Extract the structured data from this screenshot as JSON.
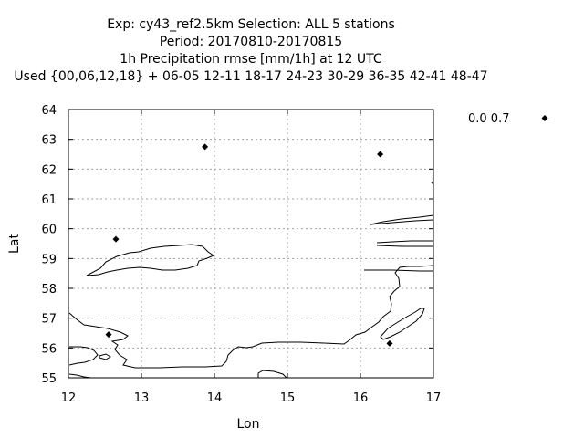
{
  "header": {
    "line1": "Exp: cy43_ref2.5km   Selection: ALL      5 stations",
    "line2": "Period: 20170810-20170815",
    "line3": "1h Precipitation rmse [mm/1h] at  12 UTC",
    "line4": "Used {00,06,12,18} + 06-05 12-11 18-17 24-23 30-29 36-35 42-41 48-47"
  },
  "chart_data": {
    "type": "scatter",
    "xlabel": "Lon",
    "ylabel": "Lat",
    "xlim": [
      12,
      17
    ],
    "ylim": [
      55,
      64
    ],
    "x_ticks": [
      "12",
      "13",
      "14",
      "15",
      "16",
      "17"
    ],
    "y_ticks": [
      "55",
      "56",
      "57",
      "58",
      "59",
      "60",
      "61",
      "62",
      "63",
      "64"
    ],
    "grid": true,
    "legend": {
      "label": "0.0 0.7",
      "placement": "top-right outside"
    },
    "series": [
      {
        "name": "0.0 0.7",
        "marker": "diamond",
        "color": "#000000",
        "points": [
          {
            "lon": 13.87,
            "lat": 62.75
          },
          {
            "lon": 16.27,
            "lat": 62.5
          },
          {
            "lon": 12.65,
            "lat": 59.65
          },
          {
            "lon": 12.55,
            "lat": 56.45
          },
          {
            "lon": 16.4,
            "lat": 56.15
          }
        ]
      }
    ]
  }
}
